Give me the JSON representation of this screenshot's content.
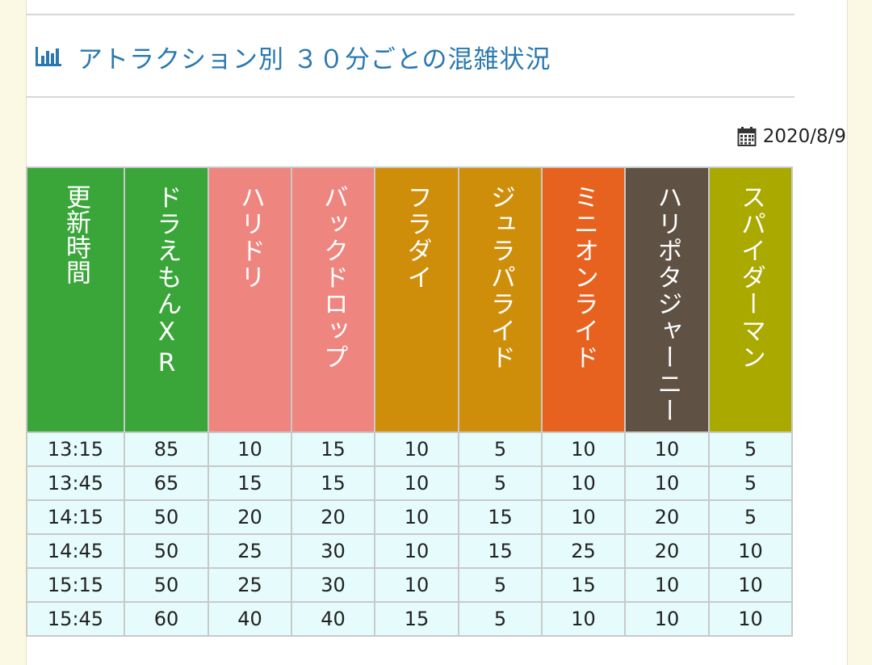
{
  "title": "アトラクション別 ３０分ごとの混雑状況",
  "icon": "bar-chart-icon",
  "date": "2020/8/9",
  "date_icon": "calendar-icon",
  "colors": {
    "accent": "#2a78b0",
    "time": "#3aa63a",
    "doraemon": "#3aa63a",
    "haridori": "#ef857f",
    "backdrop": "#ef857f",
    "fladai": "#cf8e0a",
    "jurassic": "#cf8e0a",
    "minion": "#e8621f",
    "harry": "#5f5143",
    "spiderman": "#a9a900"
  },
  "table": {
    "headers": [
      "更新時間",
      "ドラえもんXR",
      "ハリドリ",
      "バックドロップ",
      "フラダイ",
      "ジュラパライド",
      "ミニオンライド",
      "ハリポタジャーニー",
      "スパイダーマン"
    ],
    "rows": [
      [
        "13:15",
        "85",
        "10",
        "15",
        "10",
        "5",
        "10",
        "10",
        "5"
      ],
      [
        "13:45",
        "65",
        "15",
        "15",
        "10",
        "5",
        "10",
        "10",
        "5"
      ],
      [
        "14:15",
        "50",
        "20",
        "20",
        "10",
        "15",
        "10",
        "20",
        "5"
      ],
      [
        "14:45",
        "50",
        "25",
        "30",
        "10",
        "15",
        "25",
        "20",
        "10"
      ],
      [
        "15:15",
        "50",
        "25",
        "30",
        "10",
        "5",
        "15",
        "10",
        "10"
      ],
      [
        "15:45",
        "60",
        "40",
        "40",
        "15",
        "5",
        "10",
        "10",
        "10"
      ]
    ]
  }
}
